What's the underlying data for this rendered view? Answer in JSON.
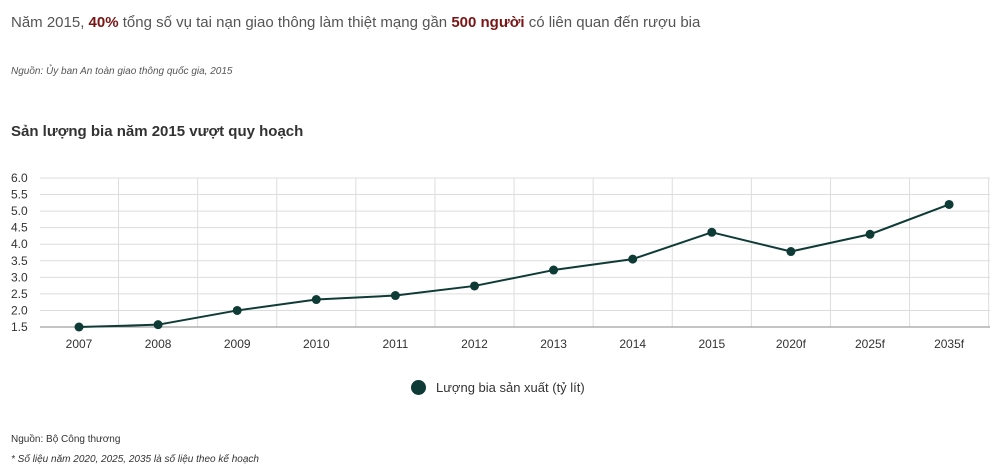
{
  "header": {
    "headline_part1": "Năm 2015, ",
    "headline_hl1": "40%",
    "headline_part2": " tổng số vụ tai nạn giao thông làm thiệt mạng gần ",
    "headline_hl2": "500 người",
    "headline_part3": " có liên quan đến rượu bia",
    "source": "Nguồn:  Ủy ban An toàn giao thông quốc gia, 2015"
  },
  "colors": {
    "accent": "#7a1515",
    "series": "#0f3b36",
    "grid": "#dddddd",
    "axis": "#888888"
  },
  "chart_data": {
    "type": "line",
    "title": "Sản lượng bia năm 2015 vượt quy hoạch",
    "xlabel": "",
    "ylabel": "",
    "ylim": [
      1.5,
      6.0
    ],
    "yticks": [
      "1.5",
      "2.0",
      "2.5",
      "3.0",
      "3.5",
      "4.0",
      "4.5",
      "5.0",
      "5.5",
      "6.0"
    ],
    "grid": true,
    "legend_position": "bottom",
    "categories": [
      "2007",
      "2008",
      "2009",
      "2010",
      "2011",
      "2012",
      "2013",
      "2014",
      "2015",
      "2020f",
      "2025f",
      "2035f"
    ],
    "series": [
      {
        "name": "Lượng bia sản xuất (tỷ lít)",
        "values": [
          1.5,
          1.57,
          2.0,
          2.33,
          2.45,
          2.74,
          3.22,
          3.55,
          4.36,
          3.78,
          4.3,
          5.2
        ]
      }
    ]
  },
  "footer": {
    "source": "Nguồn: Bộ Công thương",
    "note": "* Số liệu năm 2020, 2025, 2035 là số liệu theo kế hoạch"
  }
}
